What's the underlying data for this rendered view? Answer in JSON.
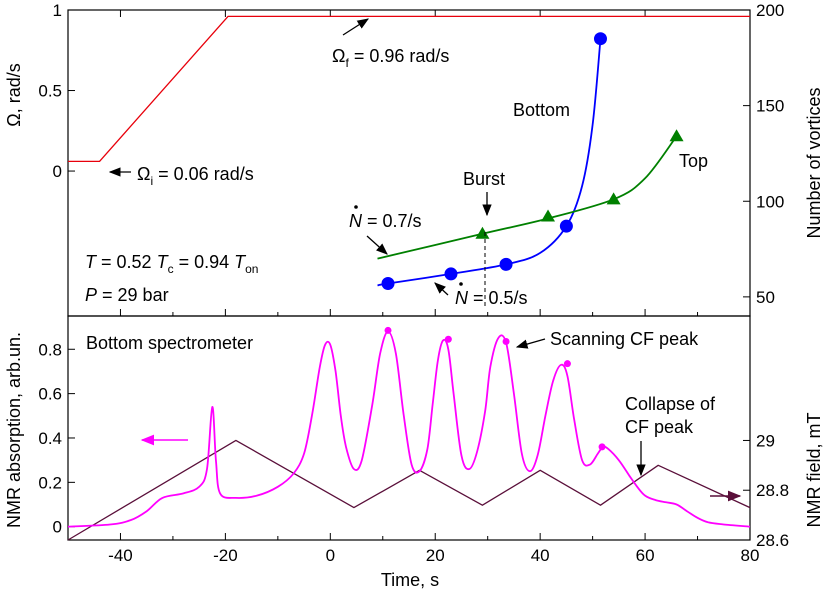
{
  "chart_data": [
    {
      "type": "line",
      "panel": "top",
      "xlim": [
        -50,
        80
      ],
      "ylabel_left": "Ω, rad/s",
      "ylabel_right": "Number of vortices",
      "ylim_left": [
        -0.9,
        1.0
      ],
      "ylim_right": [
        40,
        200
      ],
      "yticks_left": [
        "0",
        "0.5",
        "1"
      ],
      "yticks_right": [
        "50",
        "100",
        "150",
        "200"
      ],
      "series": [
        {
          "name": "",
          "axis": "left",
          "color": "#e8000b",
          "x": [
            -50,
            -44,
            -19.5,
            80
          ],
          "y": [
            0.06,
            0.06,
            0.96,
            0.96
          ]
        },
        {
          "name": "Bottom",
          "axis": "right",
          "color": "#0000ff",
          "marker": "circle",
          "points_x": [
            11,
            23,
            33.5,
            45,
            51.5
          ],
          "points_y": [
            57,
            62,
            67,
            87,
            185
          ],
          "fit_x": [
            9,
            11,
            23,
            33.5,
            40,
            45,
            48,
            50,
            51.5
          ],
          "fit_y": [
            56,
            57,
            62,
            67,
            73,
            87,
            108,
            140,
            185
          ]
        },
        {
          "name": "Top",
          "axis": "right",
          "color": "#008000",
          "marker": "triangle",
          "points_x": [
            29,
            41.5,
            54,
            66
          ],
          "points_y": [
            83,
            92,
            101,
            134
          ],
          "fit_x": [
            9,
            29,
            41.5,
            54,
            60,
            66
          ],
          "fit_y": [
            70,
            83,
            91,
            101,
            112,
            134
          ]
        }
      ],
      "annotations": {
        "omega_f": "Ω_f = 0.96 rad/s",
        "omega_i": "Ω_i = 0.06 rad/s",
        "bottom": "Bottom",
        "top": "Top",
        "burst": "Burst",
        "ndot_top": "Ṅ = 0.7/s",
        "ndot_bottom": "Ṅ = 0.5/s",
        "temperature": "T = 0.52 T_c = 0.94 T_on",
        "pressure": "P = 29 bar"
      }
    },
    {
      "type": "line",
      "panel": "bottom",
      "xlabel": "Time, s",
      "xlim": [
        -50,
        80
      ],
      "xticks": [
        "-40",
        "-20",
        "0",
        "20",
        "40",
        "60",
        "80"
      ],
      "ylabel_left": "NMR absorption, arb.un.",
      "ylabel_right": "NMR field, mT",
      "ylim_left": [
        -0.06,
        0.95
      ],
      "ylim_right": [
        28.6,
        29.5
      ],
      "yticks_left": [
        "0",
        "0.2",
        "0.4",
        "0.6",
        "0.8"
      ],
      "yticks_right": [
        "28.6",
        "28.8",
        "29"
      ],
      "series": [
        {
          "name": "",
          "axis": "left",
          "color": "#ff00ff",
          "x": [
            -50,
            -42,
            -38,
            -35,
            -32,
            -28,
            -25,
            -23.5,
            -22.5,
            -21.8,
            -21,
            -18,
            -14,
            -10,
            -7,
            -5,
            -3.5,
            -2,
            -1,
            0,
            1,
            2,
            3,
            4.5,
            6,
            8,
            9.5,
            11,
            12.5,
            14,
            15.5,
            17,
            18.5,
            19.5,
            20.5,
            21.5,
            22.5,
            23.5,
            25,
            26.5,
            28,
            29.5,
            30.5,
            32,
            33.5,
            35,
            36.5,
            38,
            39.5,
            41,
            42.5,
            44,
            45.2,
            46.5,
            48,
            49.5,
            51,
            52,
            53,
            55,
            57,
            58.5,
            60,
            62,
            64,
            66,
            68,
            70,
            72,
            75,
            80
          ],
          "y": [
            0.0,
            0.01,
            0.03,
            0.07,
            0.13,
            0.15,
            0.18,
            0.26,
            0.54,
            0.3,
            0.15,
            0.13,
            0.14,
            0.18,
            0.24,
            0.33,
            0.5,
            0.72,
            0.82,
            0.82,
            0.7,
            0.5,
            0.36,
            0.26,
            0.3,
            0.55,
            0.78,
            0.88,
            0.78,
            0.5,
            0.28,
            0.25,
            0.35,
            0.55,
            0.75,
            0.84,
            0.8,
            0.6,
            0.32,
            0.26,
            0.34,
            0.52,
            0.72,
            0.85,
            0.83,
            0.6,
            0.33,
            0.25,
            0.32,
            0.5,
            0.66,
            0.73,
            0.68,
            0.48,
            0.3,
            0.28,
            0.33,
            0.36,
            0.35,
            0.3,
            0.23,
            0.18,
            0.14,
            0.12,
            0.11,
            0.1,
            0.07,
            0.04,
            0.02,
            0.01,
            0.0
          ]
        },
        {
          "name": "",
          "axis": "right",
          "color": "#5a0f3a",
          "x": [
            -50,
            -18,
            4.5,
            17,
            29,
            40,
            51.5,
            62.5,
            80
          ],
          "y": [
            28.6,
            29.0,
            28.73,
            28.88,
            28.74,
            28.88,
            28.74,
            28.9,
            28.73
          ]
        },
        {
          "name": "",
          "axis": "left",
          "color": "#ff00ff",
          "marker": "circle",
          "points_x": [
            11,
            22.5,
            33.5,
            45.2,
            51.8
          ],
          "points_y": [
            0.885,
            0.845,
            0.835,
            0.735,
            0.36
          ]
        }
      ],
      "annotations": {
        "spectrometer": "Bottom spectrometer",
        "scanning": "Scanning CF peak",
        "collapse_line1": "Collapse of",
        "collapse_line2": "CF peak"
      }
    }
  ]
}
